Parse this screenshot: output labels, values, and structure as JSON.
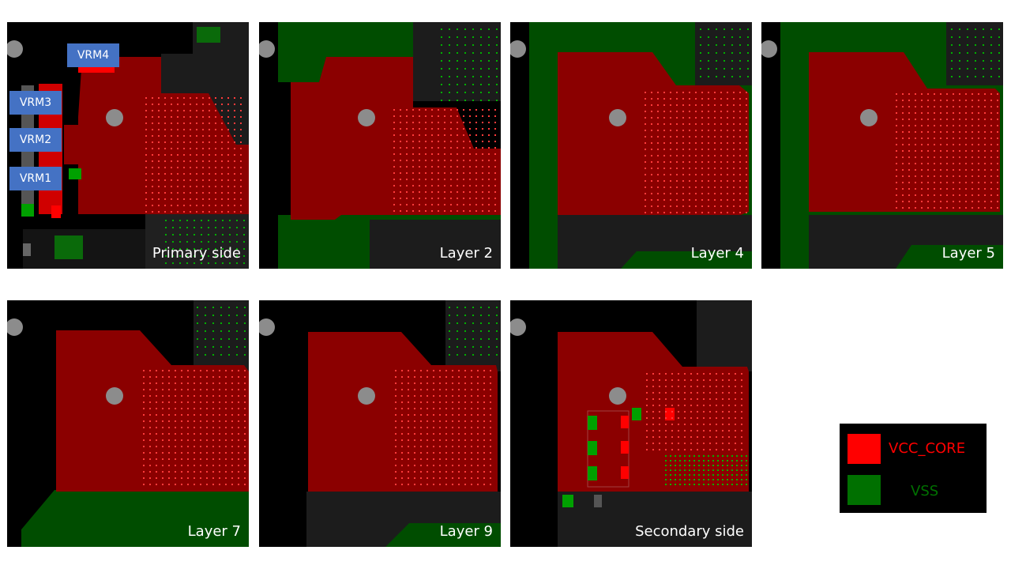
{
  "panels": [
    {
      "id": "p1",
      "label": "Primary side"
    },
    {
      "id": "p2",
      "label": "Layer 2"
    },
    {
      "id": "p3",
      "label": "Layer 4"
    },
    {
      "id": "p4",
      "label": "Layer 5"
    },
    {
      "id": "p5",
      "label": "Layer 7"
    },
    {
      "id": "p6",
      "label": "Layer 9"
    },
    {
      "id": "p7",
      "label": "Secondary side"
    }
  ],
  "vrm_labels": {
    "vrm4": "VRM4",
    "vrm3": "VRM3",
    "vrm2": "VRM2",
    "vrm1": "VRM1"
  },
  "legend": {
    "vcc": {
      "label": "VCC_CORE",
      "color": "#ff0000"
    },
    "vss": {
      "label": "VSS",
      "color": "#007000"
    }
  },
  "colors": {
    "vcc_plane": "#8b0000",
    "vss_plane": "#004d00",
    "via": "#ff3b3b",
    "background": "#000000",
    "grey_area": "#1c1c1c",
    "mount_hole": "#8c8c8c"
  }
}
